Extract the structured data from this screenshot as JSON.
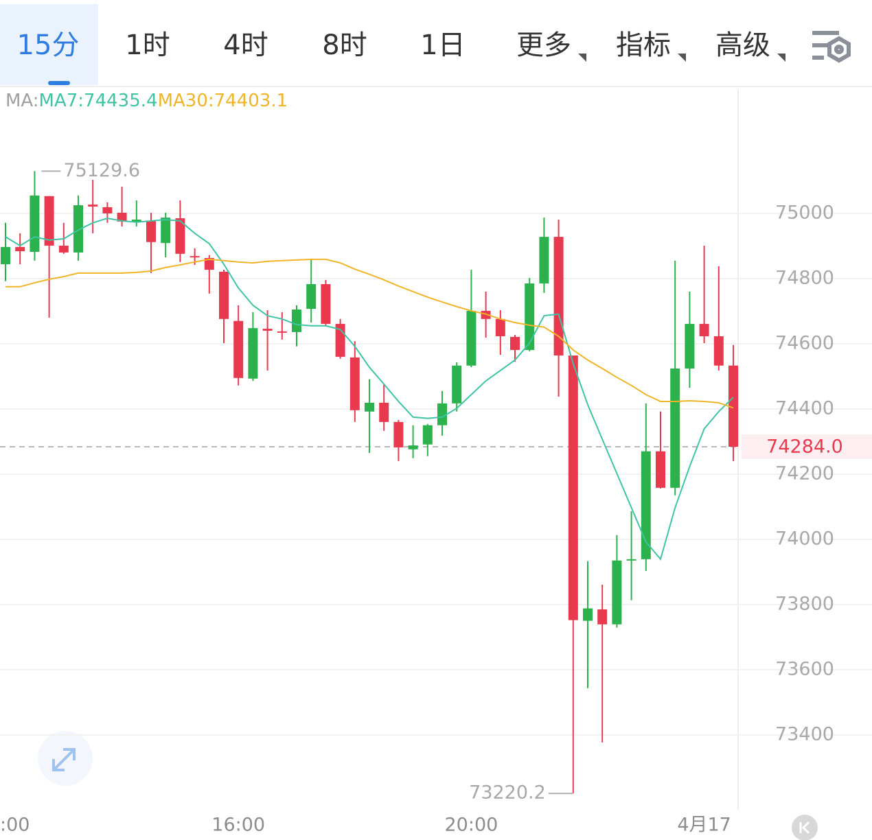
{
  "tabs": [
    "15分",
    "1时",
    "4时",
    "8时",
    "1日",
    "更多",
    "指标",
    "高级"
  ],
  "active_tab": 0,
  "chart_data": {
    "type": "candlestick",
    "legend_prefix": "MA:",
    "categories": [
      ":00",
      null,
      null,
      null,
      null,
      null,
      null,
      null,
      null,
      null,
      null,
      null,
      null,
      null,
      null,
      null,
      "16:00",
      null,
      null,
      null,
      null,
      null,
      null,
      null,
      null,
      null,
      null,
      null,
      null,
      null,
      null,
      null,
      "20:00",
      null,
      null,
      null,
      null,
      null,
      null,
      null,
      null,
      null,
      null,
      null,
      null,
      null,
      null,
      null,
      "4月17",
      null,
      null
    ],
    "open": [
      74844,
      74897,
      74882,
      75053,
      74901,
      74880,
      75027,
      75019,
      75002,
      74975,
      74977,
      74909,
      74985,
      74869,
      74863,
      74821,
      74670,
      74493,
      74646,
      74638,
      74636,
      74707,
      74783,
      74661,
      74558,
      74392,
      74419,
      74360,
      74276,
      74291,
      74350,
      74417,
      74533,
      74701,
      74676,
      74621,
      74581,
      74785,
      74928,
      74564,
      73750,
      73785,
      73739,
      73935,
      73939,
      74270,
      74158,
      74524,
      74661,
      74623,
      74533
    ],
    "high": [
      74971,
      74939,
      75129.6,
      75053,
      74971,
      75055,
      75103,
      75034,
      75082,
      75040,
      75002,
      75002,
      75040,
      74893,
      74872,
      74827,
      74718,
      74697,
      74703,
      74697,
      74718,
      74859,
      74796,
      74676,
      74608,
      74491,
      74476,
      74366,
      74350,
      74354,
      74455,
      74543,
      74827,
      74760,
      74703,
      74627,
      74802,
      74987,
      74981,
      74564,
      73933,
      73861,
      74013,
      74086,
      74417,
      74392,
      74855,
      74760,
      74901,
      74838,
      74596
    ],
    "low": [
      74792,
      74844,
      74855,
      74680,
      74876,
      74855,
      74939,
      74971,
      74960,
      74960,
      74817,
      74865,
      74851,
      74842,
      74754,
      74602,
      74472,
      74486,
      74518,
      74613,
      74592,
      74665,
      74655,
      74554,
      74360,
      74265,
      74333,
      74240,
      74249,
      74255,
      74318,
      74392,
      74528,
      74619,
      74566,
      74545,
      74577,
      74756,
      74438,
      73220.2,
      73543,
      73377,
      73729,
      73813,
      73903,
      74156,
      74135,
      74465,
      74602,
      74518,
      74240
    ],
    "close": [
      74897,
      74884,
      75055,
      74901,
      74880,
      75025,
      75021,
      75000,
      74975,
      74981,
      74912,
      74987,
      74876,
      74865,
      74827,
      74676,
      74495,
      74648,
      74640,
      74636,
      74705,
      74783,
      74661,
      74560,
      74396,
      74419,
      74360,
      74282,
      74288,
      74350,
      74417,
      74533,
      74701,
      74676,
      74623,
      74581,
      74785,
      74928,
      74564,
      73752,
      73788,
      73739,
      73935,
      73939,
      74270,
      74158,
      74524,
      74661,
      74623,
      74533,
      74284
    ],
    "up_color": "#2bb24c",
    "down_color": "#e8394f",
    "series": [
      {
        "name": "MA7",
        "label": "MA7:74435.4",
        "color": "#3ec4a4",
        "values": [
          74928,
          74901,
          74928,
          74918,
          74922,
          74949,
          74971,
          74985,
          74977,
          74973,
          74977,
          74981,
          74977,
          74939,
          74907,
          74844,
          74771,
          74718,
          74686,
          74676,
          74659,
          74655,
          74655,
          74644,
          74592,
          74528,
          74476,
          74423,
          74375,
          74371,
          74375,
          74402,
          74444,
          74486,
          74518,
          74550,
          74602,
          74686,
          74691,
          74539,
          74413,
          74307,
          74202,
          74097,
          73992,
          73939,
          74097,
          74223,
          74339,
          74392,
          74435.4
        ]
      },
      {
        "name": "MA30",
        "label": "MA30:74403.1",
        "color": "#f0b429",
        "values": [
          74775,
          74775,
          74787,
          74798,
          74806,
          74817,
          74817,
          74817,
          74817,
          74819,
          74823,
          74834,
          74842,
          74851,
          74859,
          74855,
          74851,
          74848,
          74853,
          74855,
          74857,
          74859,
          74859,
          74848,
          74829,
          74813,
          74796,
          74777,
          74760,
          74743,
          74728,
          74714,
          74701,
          74691,
          74676,
          74665,
          74657,
          74651,
          74623,
          74581,
          74550,
          74524,
          74497,
          74472,
          74444,
          74423,
          74423,
          74425,
          74423,
          74419,
          74403.1
        ]
      }
    ],
    "last_price": {
      "value": 74284,
      "label": "74284.0"
    },
    "ylim": [
      73170,
      75381
    ],
    "yticks": [
      73400,
      73600,
      73800,
      74000,
      74200,
      74400,
      74600,
      74800,
      75000
    ],
    "grid": true
  }
}
